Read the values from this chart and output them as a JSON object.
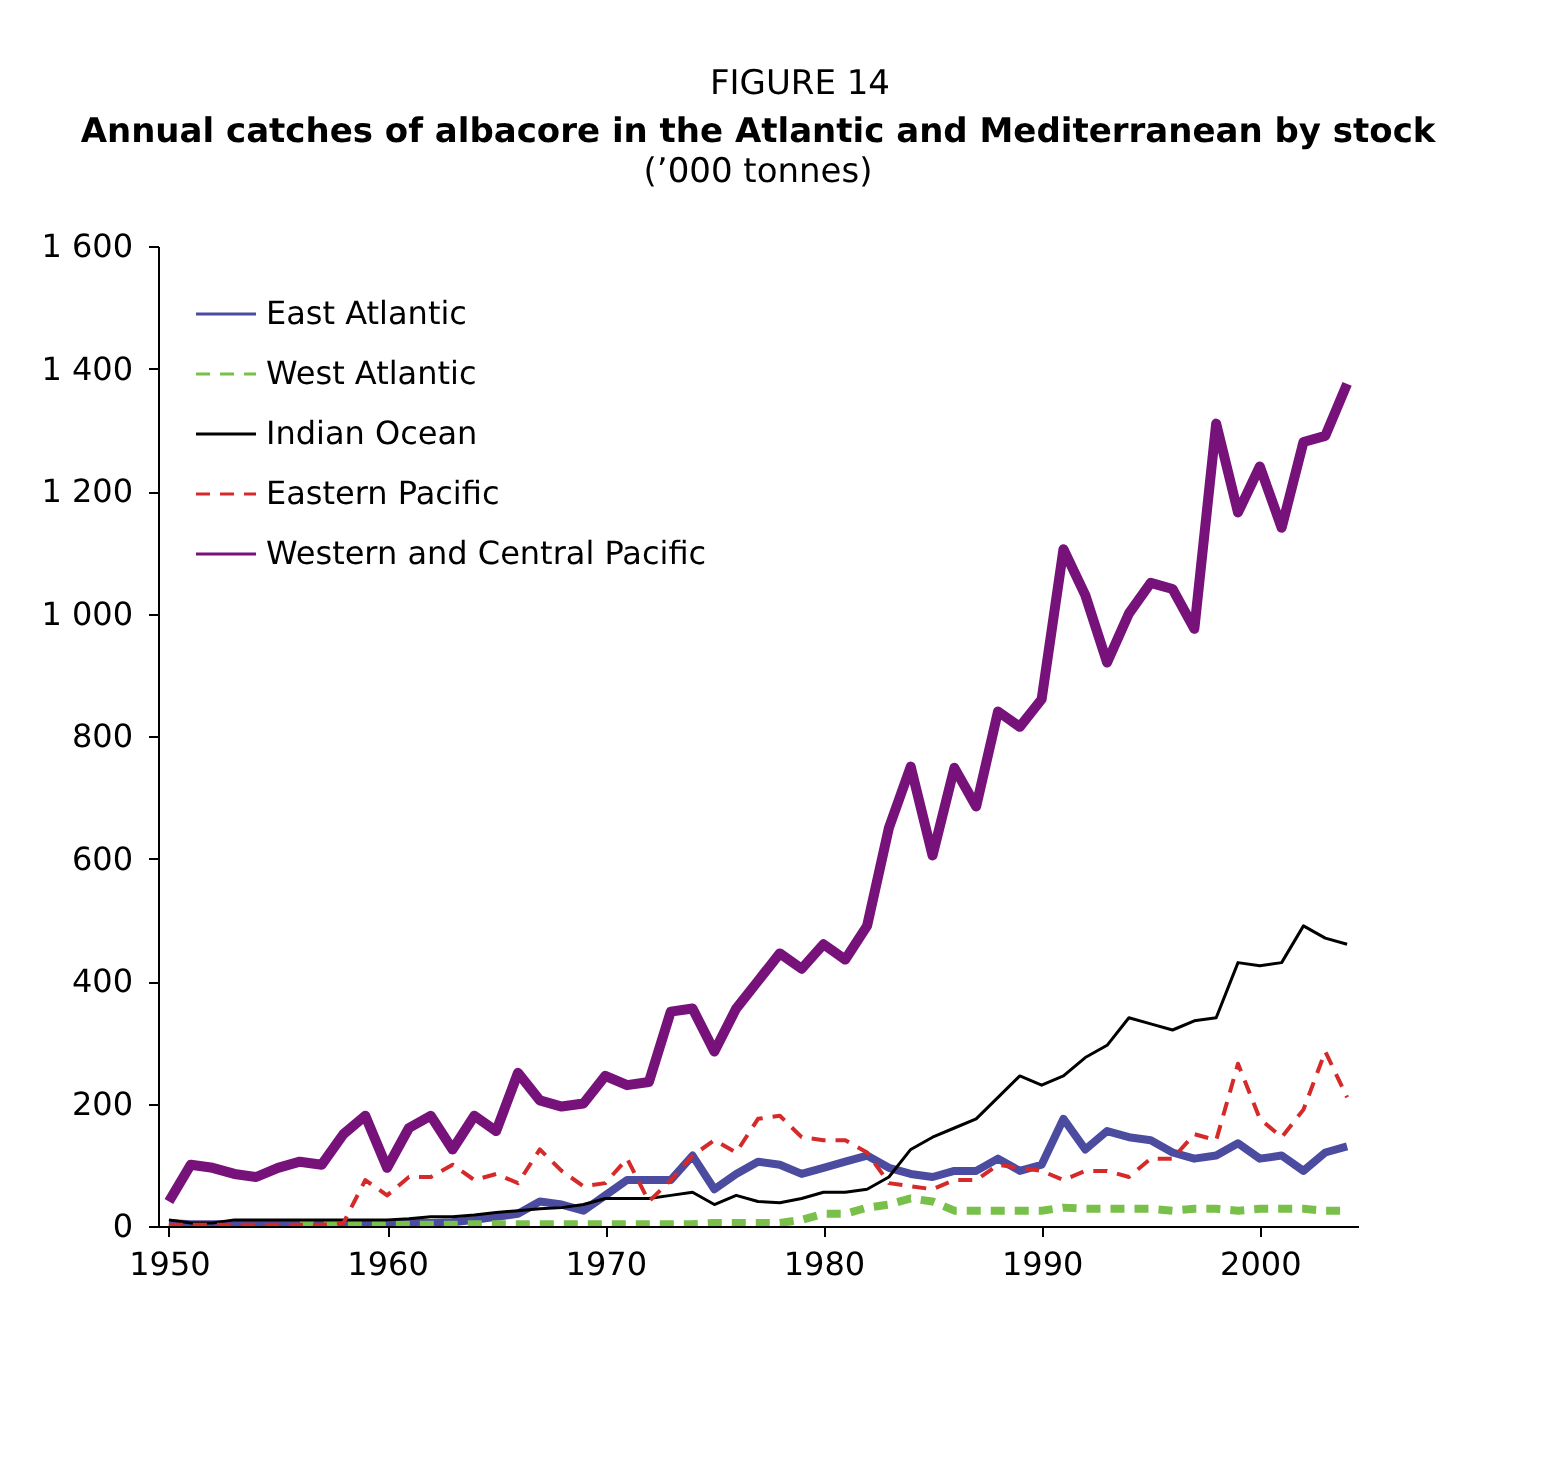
{
  "chart_data": {
    "type": "line",
    "title": "Annual catches of albacore in the Atlantic and Mediterranean by stock",
    "subtitle": "(’000 tonnes)",
    "annotations": [
      "FIGURE 14"
    ],
    "x": [
      1950,
      1951,
      1952,
      1953,
      1954,
      1955,
      1956,
      1957,
      1958,
      1959,
      1960,
      1961,
      1962,
      1963,
      1964,
      1965,
      1966,
      1967,
      1968,
      1969,
      1970,
      1971,
      1972,
      1973,
      1974,
      1975,
      1976,
      1977,
      1978,
      1979,
      1980,
      1981,
      1982,
      1983,
      1984,
      1985,
      1986,
      1987,
      1988,
      1989,
      1990,
      1991,
      1992,
      1993,
      1994,
      1995,
      1996,
      1997,
      1998,
      1999,
      2000,
      2001,
      2002,
      2003,
      2004
    ],
    "series": [
      {
        "name": "East Atlantic",
        "color": "#4b4ba0",
        "line_style": "solid",
        "values": [
          5,
          3,
          3,
          3,
          3,
          4,
          4,
          4,
          4,
          5,
          5,
          5,
          5,
          6,
          10,
          15,
          20,
          40,
          35,
          25,
          50,
          75,
          75,
          75,
          115,
          60,
          85,
          105,
          100,
          85,
          95,
          105,
          115,
          95,
          85,
          80,
          90,
          90,
          110,
          90,
          100,
          175,
          125,
          155,
          145,
          140,
          120,
          110,
          115,
          135,
          110,
          115,
          90,
          120,
          130
        ]
      },
      {
        "name": "West Atlantic",
        "color": "#78c04a",
        "line_style": "dashed",
        "values": [
          null,
          null,
          null,
          null,
          null,
          null,
          2,
          2,
          2,
          2,
          2,
          2,
          2,
          2,
          3,
          3,
          3,
          3,
          3,
          3,
          3,
          3,
          3,
          3,
          3,
          5,
          5,
          5,
          5,
          10,
          20,
          20,
          30,
          35,
          45,
          40,
          25,
          25,
          25,
          25,
          25,
          30,
          28,
          28,
          28,
          28,
          25,
          28,
          28,
          25,
          28,
          28,
          28,
          25,
          25
        ]
      },
      {
        "name": "Indian Ocean",
        "color": "#000000",
        "line_style": "solid",
        "values": [
          10,
          5,
          5,
          10,
          10,
          10,
          10,
          10,
          10,
          10,
          10,
          12,
          15,
          15,
          18,
          22,
          25,
          28,
          30,
          35,
          45,
          45,
          45,
          50,
          55,
          35,
          50,
          40,
          38,
          45,
          55,
          55,
          60,
          80,
          125,
          145,
          160,
          175,
          210,
          245,
          230,
          245,
          275,
          295,
          340,
          330,
          320,
          335,
          340,
          430,
          425,
          430,
          490,
          470,
          460
        ]
      },
      {
        "name": "Eastern Pacific",
        "color": "#d62a2a",
        "line_style": "dashed",
        "values": [
          2,
          2,
          2,
          2,
          2,
          2,
          2,
          2,
          5,
          75,
          50,
          80,
          80,
          100,
          75,
          85,
          70,
          125,
          90,
          65,
          70,
          110,
          40,
          75,
          115,
          140,
          120,
          175,
          180,
          145,
          140,
          140,
          120,
          70,
          65,
          60,
          75,
          75,
          100,
          95,
          90,
          75,
          90,
          90,
          80,
          110,
          110,
          150,
          140,
          265,
          175,
          145,
          190,
          285,
          210
        ]
      },
      {
        "name": "Western and Central Pacific",
        "color": "#76127a",
        "line_style": "solid",
        "values": [
          40,
          100,
          95,
          85,
          80,
          95,
          105,
          100,
          150,
          180,
          95,
          160,
          180,
          125,
          180,
          155,
          250,
          205,
          195,
          200,
          245,
          230,
          235,
          350,
          355,
          285,
          355,
          400,
          445,
          420,
          460,
          435,
          490,
          650,
          750,
          605,
          748,
          685,
          840,
          815,
          860,
          1105,
          1030,
          920,
          1000,
          1050,
          1040,
          975,
          1310,
          1165,
          1240,
          1140,
          1280,
          1290,
          1375
        ]
      }
    ],
    "xlim": [
      1949.5,
      2004.5
    ],
    "xticks": [
      1950,
      1960,
      1970,
      1980,
      1990,
      2000
    ],
    "ylim": [
      0,
      1600
    ],
    "yticks": [
      0,
      200,
      400,
      600,
      800,
      {
        "value": 1000,
        "label": "1 000"
      },
      {
        "value": 1200,
        "label": "1 200"
      },
      {
        "value": 1400,
        "label": "1 400"
      },
      {
        "value": 1600,
        "label": "1 600"
      }
    ],
    "grid": false,
    "legend": "top left"
  }
}
